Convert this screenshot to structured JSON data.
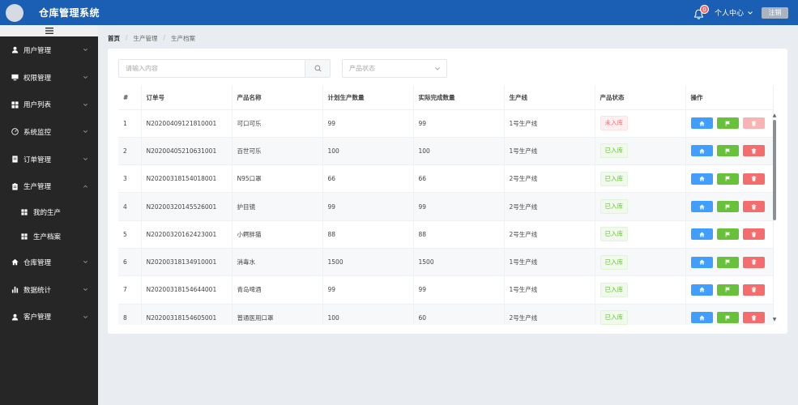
{
  "header": {
    "title": "仓库管理系统",
    "notification_count": "0",
    "user_center": "个人中心",
    "logout": "注销"
  },
  "sidebar": {
    "items": [
      {
        "label": "用户管理",
        "icon": "user-icon",
        "expanded": false
      },
      {
        "label": "权限管理",
        "icon": "monitor-icon",
        "expanded": false
      },
      {
        "label": "用户列表",
        "icon": "grid-icon",
        "expanded": false
      },
      {
        "label": "系统监控",
        "icon": "gauge-icon",
        "expanded": false
      },
      {
        "label": "订单管理",
        "icon": "document-icon",
        "expanded": false
      },
      {
        "label": "生产管理",
        "icon": "clipboard-icon",
        "expanded": true
      },
      {
        "label": "仓库管理",
        "icon": "home-icon",
        "expanded": false
      },
      {
        "label": "数据统计",
        "icon": "bar-chart-icon",
        "expanded": false
      },
      {
        "label": "客户管理",
        "icon": "user-icon",
        "expanded": false
      }
    ],
    "sub_items": [
      {
        "label": "我的生产",
        "icon": "grid-icon"
      },
      {
        "label": "生产档案",
        "icon": "grid-icon",
        "active": true
      }
    ]
  },
  "breadcrumb": [
    "首页",
    "生产管理",
    "生产档案"
  ],
  "filters": {
    "search_placeholder": "请输入内容",
    "status_placeholder": "产品状态"
  },
  "table": {
    "columns": [
      "#",
      "订单号",
      "产品名称",
      "计划生产数量",
      "实际完成数量",
      "生产线",
      "产品状态",
      "操作"
    ],
    "rows": [
      {
        "idx": "1",
        "order": "N20200409121810001",
        "product": "可口可乐",
        "planned": "99",
        "actual": "99",
        "line": "1号生产线",
        "status": "未入库",
        "stored": false
      },
      {
        "idx": "2",
        "order": "N20200405210631001",
        "product": "百世可乐",
        "planned": "100",
        "actual": "100",
        "line": "1号生产线",
        "status": "已入库",
        "stored": true
      },
      {
        "idx": "3",
        "order": "N20200318154018001",
        "product": "N95口罩",
        "planned": "66",
        "actual": "66",
        "line": "2号生产线",
        "status": "已入库",
        "stored": true
      },
      {
        "idx": "4",
        "order": "N20200320145526001",
        "product": "护目镜",
        "planned": "99",
        "actual": "99",
        "line": "2号生产线",
        "status": "已入库",
        "stored": true
      },
      {
        "idx": "5",
        "order": "N20200320162423001",
        "product": "小鳄胖猫",
        "planned": "88",
        "actual": "88",
        "line": "2号生产线",
        "status": "已入库",
        "stored": true
      },
      {
        "idx": "6",
        "order": "N20200318134910001",
        "product": "消毒水",
        "planned": "1500",
        "actual": "1500",
        "line": "1号生产线",
        "status": "已入库",
        "stored": true
      },
      {
        "idx": "7",
        "order": "N20200318154644001",
        "product": "青岛啤酒",
        "planned": "99",
        "actual": "99",
        "line": "1号生产线",
        "status": "已入库",
        "stored": true
      },
      {
        "idx": "8",
        "order": "N20200318154605001",
        "product": "普通医用口罩",
        "planned": "100",
        "actual": "60",
        "line": "2号生产线",
        "status": "已入库",
        "stored": true
      }
    ]
  },
  "colors": {
    "header": "#1a5fb4",
    "sidebar": "#262626",
    "primary": "#409eff",
    "success": "#67c23a",
    "danger": "#f56c6c"
  }
}
